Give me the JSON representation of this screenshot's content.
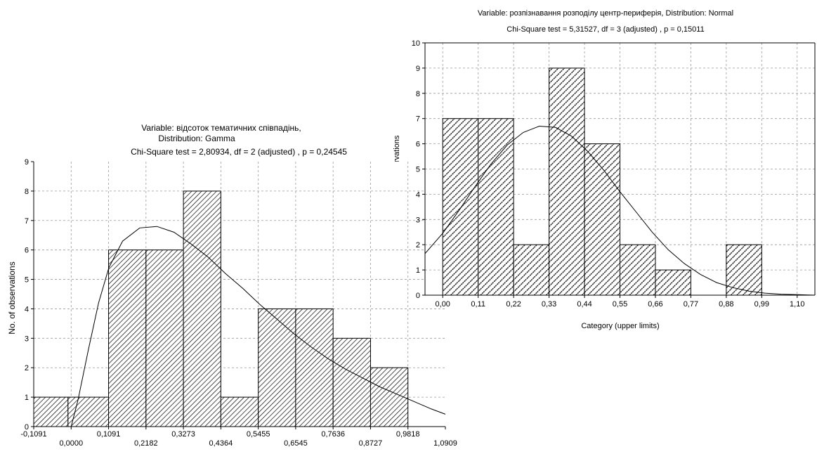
{
  "chart_data": [
    {
      "type": "bar",
      "title_lines": [
        "Variable: відсоток тематичних співпадінь,",
        "Distribution: Gamma",
        "Chi-Square test = 2,80934, df = 2 (adjusted) , p = 0,24545"
      ],
      "xlabel": "",
      "ylabel": "No. of observations",
      "ylim": [
        0,
        9
      ],
      "xlim": [
        -0.1091,
        1.0909
      ],
      "x_ticks": [
        "-0,1091",
        "0,0000",
        "0,1091",
        "0,2182",
        "0,3273",
        "0,4364",
        "0,5455",
        "0,6545",
        "0,7636",
        "0,8727",
        "0,9818",
        "1,0909"
      ],
      "y_ticks": [
        "0",
        "1",
        "2",
        "3",
        "4",
        "5",
        "6",
        "7",
        "8",
        "9"
      ],
      "bins": [
        {
          "from": -0.1091,
          "to": -0.0091,
          "count": 1
        },
        {
          "from": -0.0091,
          "to": 0.1091,
          "count": 1
        },
        {
          "from": 0.1091,
          "to": 0.2182,
          "count": 6
        },
        {
          "from": 0.2182,
          "to": 0.3273,
          "count": 6
        },
        {
          "from": 0.3273,
          "to": 0.4364,
          "count": 8
        },
        {
          "from": 0.4364,
          "to": 0.5455,
          "count": 1
        },
        {
          "from": 0.5455,
          "to": 0.6545,
          "count": 4
        },
        {
          "from": 0.6545,
          "to": 0.7636,
          "count": 4
        },
        {
          "from": 0.7636,
          "to": 0.8727,
          "count": 3
        },
        {
          "from": 0.8727,
          "to": 0.9818,
          "count": 2
        }
      ],
      "fit_curve": {
        "distribution": "Gamma",
        "x": [
          0.0,
          0.02,
          0.05,
          0.08,
          0.11,
          0.15,
          0.2,
          0.25,
          0.3,
          0.35,
          0.4,
          0.45,
          0.5,
          0.55,
          0.6,
          0.65,
          0.7,
          0.75,
          0.8,
          0.85,
          0.9,
          0.95,
          1.0,
          1.05,
          1.0909
        ],
        "y": [
          0.0,
          0.9,
          2.6,
          4.2,
          5.4,
          6.3,
          6.75,
          6.8,
          6.6,
          6.2,
          5.75,
          5.2,
          4.7,
          4.15,
          3.65,
          3.15,
          2.7,
          2.3,
          1.95,
          1.65,
          1.35,
          1.1,
          0.85,
          0.6,
          0.42
        ]
      }
    },
    {
      "type": "bar",
      "title_lines": [
        "Variable: розпізнавання розподілу центр-периферія, Distribution: Normal",
        "Chi-Square test = 5,31527, df = 3 (adjusted) , p = 0,15011"
      ],
      "xlabel": "Category (upper limits)",
      "ylabel": "No. of observations",
      "ylim": [
        0,
        10
      ],
      "xlim": [
        -0.055,
        1.155
      ],
      "x_ticks": [
        "0,00",
        "0,11",
        "0,22",
        "0,33",
        "0,44",
        "0,55",
        "0,66",
        "0,77",
        "0,88",
        "0,99",
        "1,10"
      ],
      "y_ticks": [
        "0",
        "1",
        "2",
        "3",
        "4",
        "5",
        "6",
        "7",
        "8",
        "9",
        "10"
      ],
      "bins": [
        {
          "from": 0.0,
          "to": 0.11,
          "count": 7
        },
        {
          "from": 0.11,
          "to": 0.22,
          "count": 7
        },
        {
          "from": 0.22,
          "to": 0.33,
          "count": 2
        },
        {
          "from": 0.33,
          "to": 0.44,
          "count": 9
        },
        {
          "from": 0.44,
          "to": 0.55,
          "count": 6
        },
        {
          "from": 0.55,
          "to": 0.66,
          "count": 2
        },
        {
          "from": 0.66,
          "to": 0.77,
          "count": 1
        },
        {
          "from": 0.77,
          "to": 0.88,
          "count": 0
        },
        {
          "from": 0.88,
          "to": 0.99,
          "count": 2
        }
      ],
      "fit_curve": {
        "distribution": "Normal",
        "x": [
          -0.055,
          0.0,
          0.05,
          0.1,
          0.15,
          0.2,
          0.25,
          0.3,
          0.35,
          0.4,
          0.45,
          0.5,
          0.55,
          0.6,
          0.65,
          0.7,
          0.75,
          0.8,
          0.85,
          0.9,
          0.95,
          1.0,
          1.05,
          1.1,
          1.155
        ],
        "y": [
          1.65,
          2.45,
          3.35,
          4.3,
          5.2,
          5.95,
          6.45,
          6.7,
          6.65,
          6.3,
          5.7,
          4.95,
          4.1,
          3.3,
          2.5,
          1.8,
          1.25,
          0.82,
          0.5,
          0.3,
          0.16,
          0.08,
          0.04,
          0.02,
          0.0
        ]
      }
    }
  ]
}
